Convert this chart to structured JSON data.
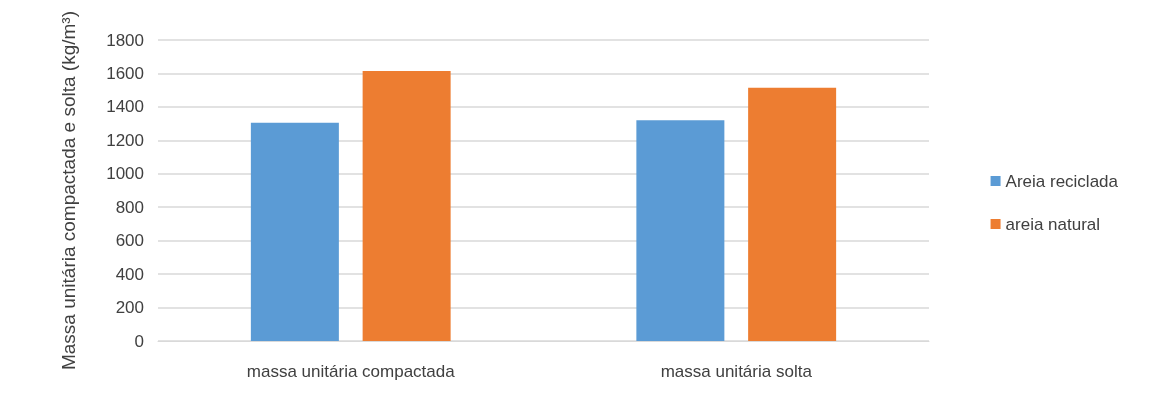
{
  "chart_data": {
    "type": "bar",
    "ylabel": "Massa unitária compactada e solta (kg/m³)",
    "categories": [
      "massa unitária compactada",
      "massa unitária solta"
    ],
    "series": [
      {
        "name": "Areia reciclada",
        "color": "#5b9bd5",
        "values": [
          1305,
          1320
        ]
      },
      {
        "name": "areia natural",
        "color": "#ed7d31",
        "values": [
          1615,
          1515
        ]
      }
    ],
    "ylim": [
      0,
      1800
    ],
    "yticks": [
      0,
      200,
      400,
      600,
      800,
      1000,
      1200,
      1400,
      1600,
      1800
    ],
    "grid": "y",
    "legend": "right"
  }
}
